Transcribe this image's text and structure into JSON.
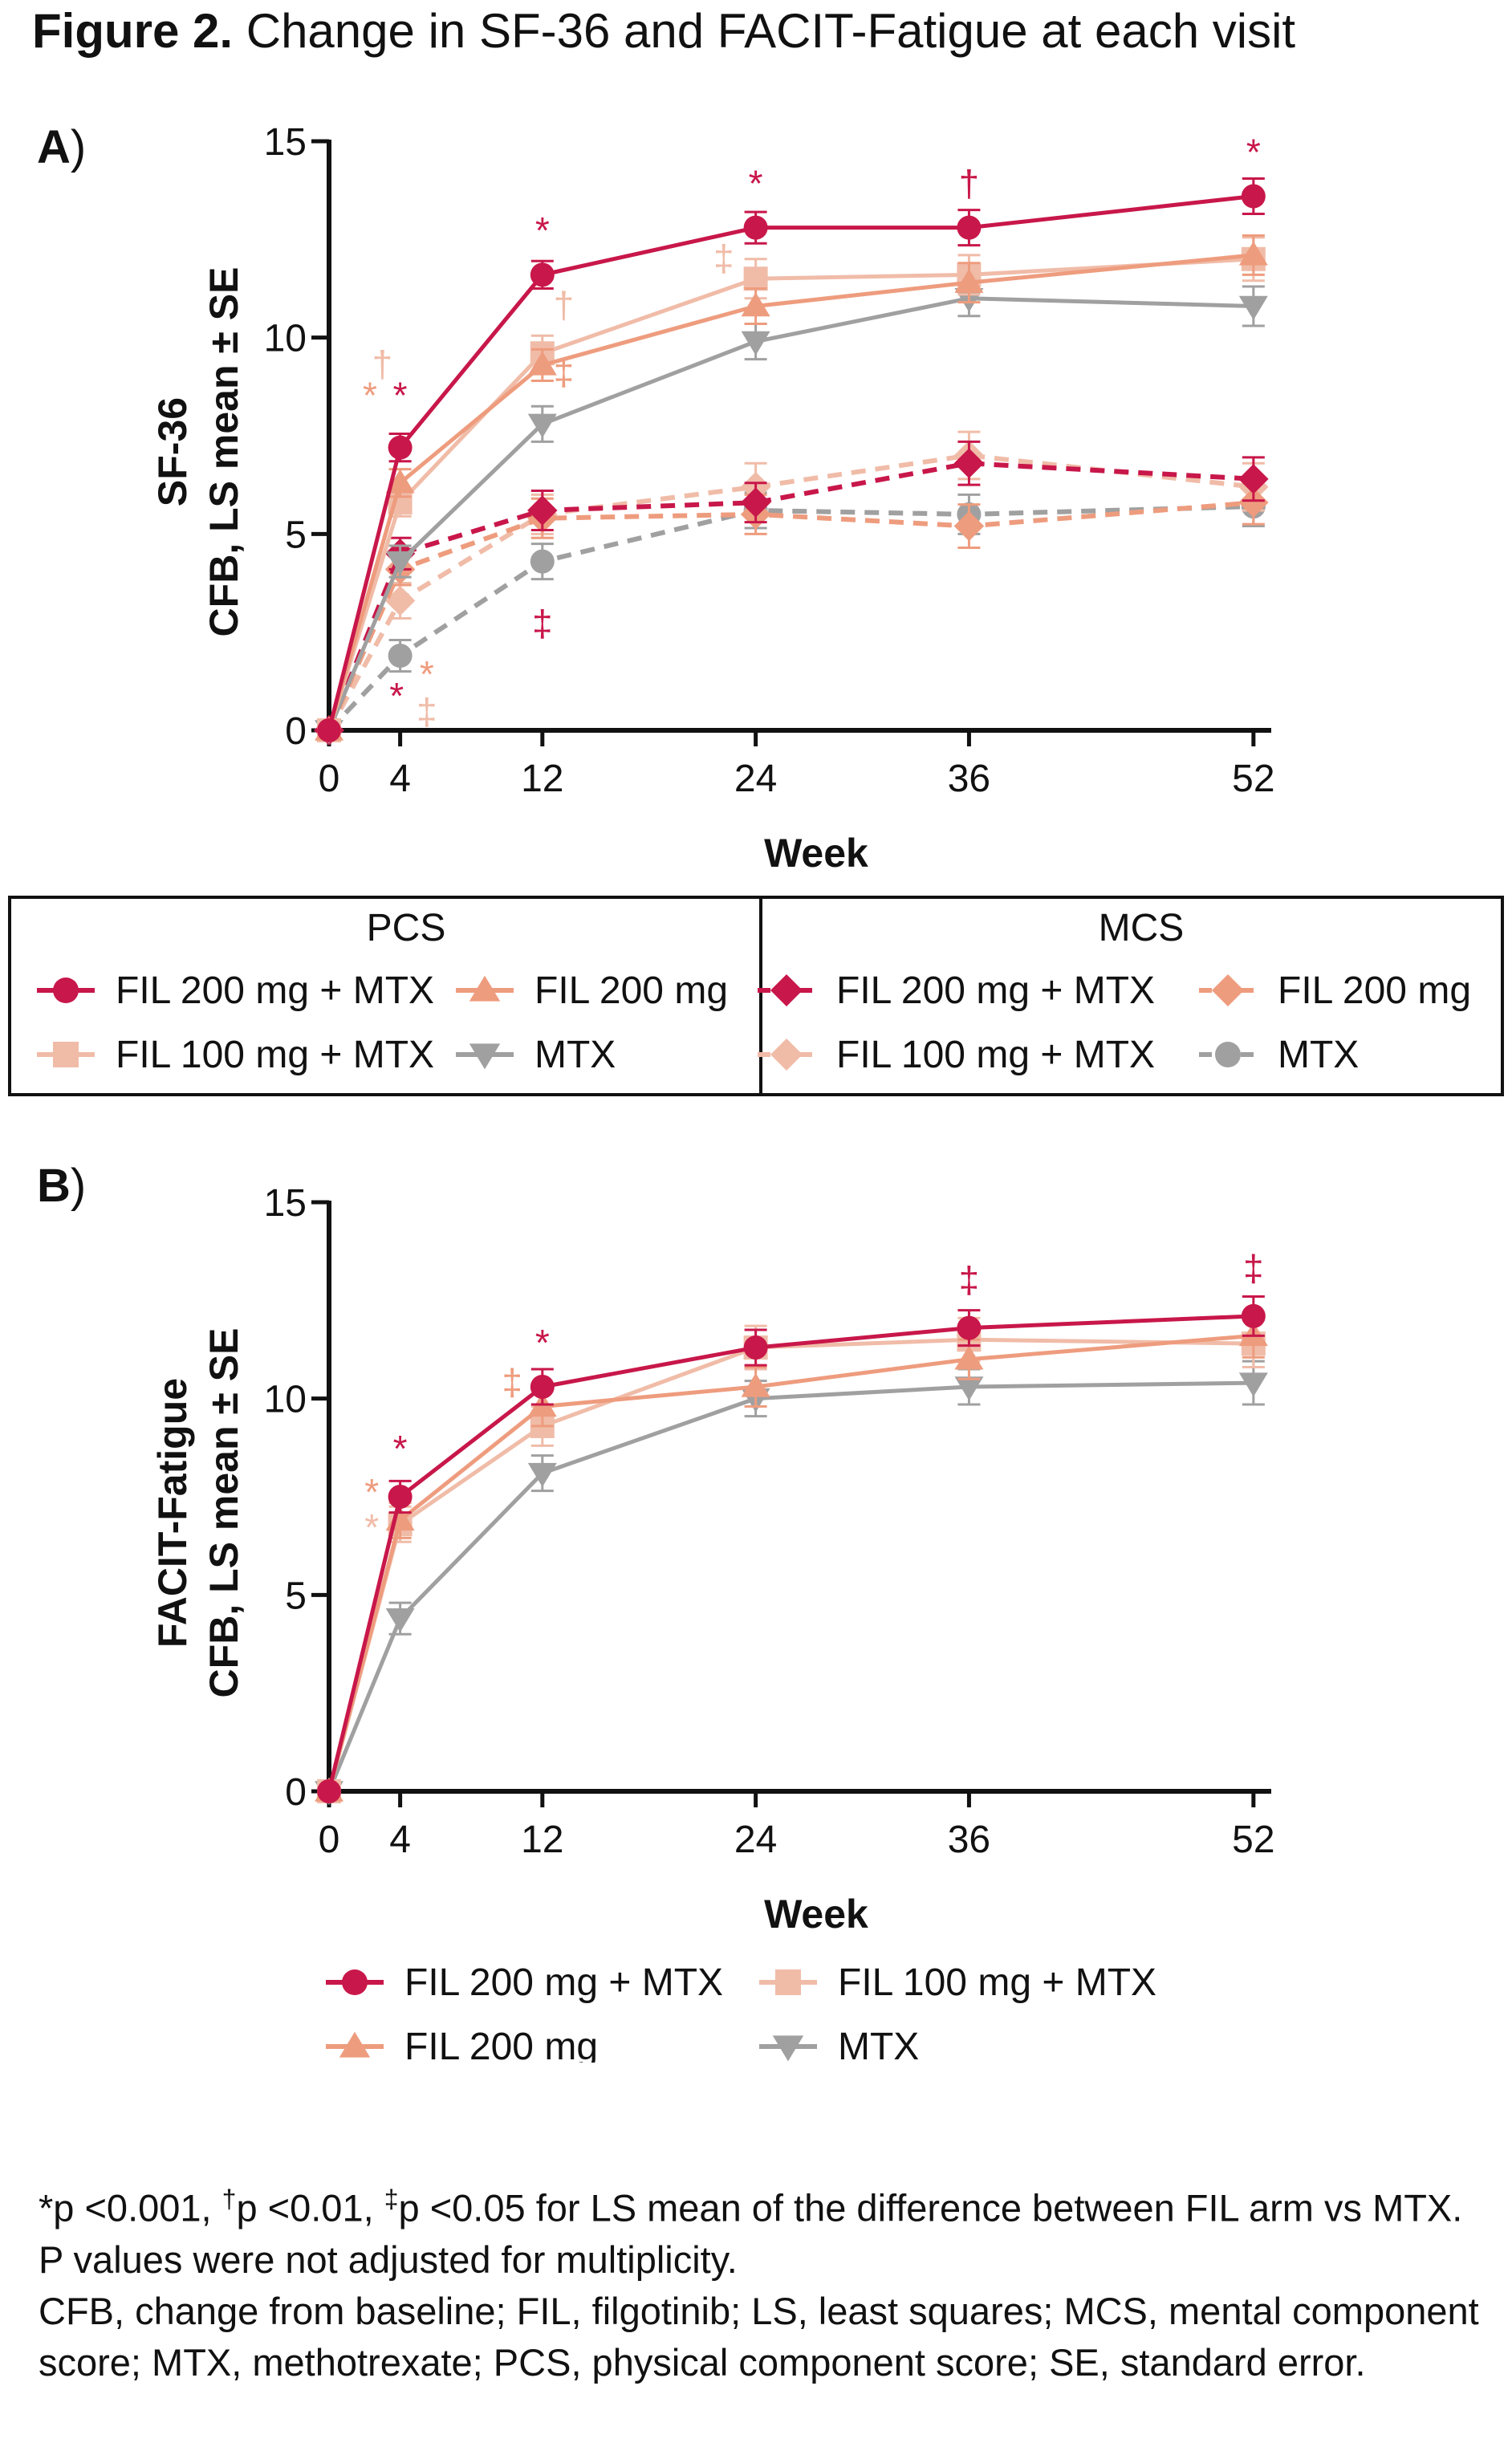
{
  "figure": {
    "title_bold": "Figure 2.",
    "title_rest": " Change in SF-36 and FACIT-Fatigue at each visit"
  },
  "colors": {
    "fil200_mtx": "#c8174a",
    "fil200": "#ee9c7e",
    "fil100_mtx": "#f0bca8",
    "mtx": "#a0a0a0",
    "axis": "#111111"
  },
  "panel_a": {
    "letter": "A",
    "paren": ")",
    "legend": {
      "pcs_header": "PCS",
      "mcs_header": "MCS",
      "pcs_items": [
        "FIL 200 mg + MTX",
        "FIL 200 mg",
        "FIL 100 mg + MTX",
        "MTX"
      ],
      "mcs_items": [
        "FIL 200 mg + MTX",
        "FIL 200 mg",
        "FIL 100 mg + MTX",
        "MTX"
      ]
    }
  },
  "panel_b": {
    "letter": "B",
    "paren": ")",
    "legend_items": [
      "FIL 200 mg + MTX",
      "FIL 100 mg + MTX",
      "FIL 200 mg",
      "MTX"
    ]
  },
  "chart_data": [
    {
      "type": "line",
      "panel": "A",
      "ylabel_line1": "SF-36",
      "ylabel_line2": "CFB, LS mean ± SE",
      "xlabel": "Week",
      "x": [
        0,
        4,
        12,
        24,
        36,
        52
      ],
      "xticks": [
        "0",
        "4",
        "12",
        "24",
        "36",
        "52"
      ],
      "yticks": [
        "0",
        "5",
        "10",
        "15"
      ],
      "ylim": [
        0,
        15
      ],
      "xlim": [
        0,
        53
      ],
      "series": [
        {
          "group": "PCS",
          "name": "FIL 200 mg + MTX",
          "color_key": "fil200_mtx",
          "marker": "circle",
          "dashed": false,
          "values": [
            0,
            7.2,
            11.6,
            12.8,
            12.8,
            13.6
          ],
          "se": [
            0,
            0.35,
            0.35,
            0.4,
            0.45,
            0.45
          ]
        },
        {
          "group": "PCS",
          "name": "FIL 200 mg",
          "color_key": "fil200",
          "marker": "triangle-up",
          "dashed": false,
          "values": [
            0,
            6.3,
            9.3,
            10.8,
            11.4,
            12.1
          ],
          "se": [
            0,
            0.35,
            0.4,
            0.45,
            0.5,
            0.5
          ]
        },
        {
          "group": "PCS",
          "name": "FIL 100 mg + MTX",
          "color_key": "fil100_mtx",
          "marker": "square",
          "dashed": false,
          "values": [
            0,
            5.8,
            9.6,
            11.5,
            11.6,
            12.0
          ],
          "se": [
            0,
            0.35,
            0.45,
            0.5,
            0.5,
            0.55
          ]
        },
        {
          "group": "PCS",
          "name": "MTX",
          "color_key": "mtx",
          "marker": "triangle-down",
          "dashed": false,
          "values": [
            0,
            4.3,
            7.8,
            9.9,
            11.0,
            10.8
          ],
          "se": [
            0,
            0.4,
            0.45,
            0.45,
            0.45,
            0.5
          ]
        },
        {
          "group": "MCS",
          "name": "FIL 200 mg + MTX",
          "color_key": "fil200_mtx",
          "marker": "diamond",
          "dashed": true,
          "values": [
            0,
            4.5,
            5.6,
            5.8,
            6.8,
            6.4
          ],
          "se": [
            0,
            0.4,
            0.5,
            0.5,
            0.55,
            0.55
          ]
        },
        {
          "group": "MCS",
          "name": "FIL 200 mg",
          "color_key": "fil200",
          "marker": "diamond",
          "dashed": true,
          "values": [
            0,
            4.1,
            5.4,
            5.5,
            5.2,
            5.8
          ],
          "se": [
            0,
            0.4,
            0.5,
            0.5,
            0.55,
            0.55
          ]
        },
        {
          "group": "MCS",
          "name": "FIL 100 mg + MTX",
          "color_key": "fil100_mtx",
          "marker": "diamond",
          "dashed": true,
          "values": [
            0,
            3.3,
            5.5,
            6.2,
            7.0,
            6.2
          ],
          "se": [
            0,
            0.45,
            0.5,
            0.6,
            0.6,
            0.6
          ]
        },
        {
          "group": "MCS",
          "name": "MTX",
          "color_key": "mtx",
          "marker": "circle",
          "dashed": true,
          "values": [
            0,
            1.9,
            4.3,
            5.6,
            5.5,
            5.7
          ],
          "se": [
            0,
            0.4,
            0.45,
            0.45,
            0.5,
            0.5
          ]
        }
      ],
      "annotations": [
        {
          "x": 4,
          "y": 8.2,
          "text": "*",
          "color_key": "fil200_mtx"
        },
        {
          "x": 2.3,
          "y": 8.2,
          "text": "*",
          "color_key": "fil200"
        },
        {
          "x": 3.0,
          "y": 9.0,
          "text": "†",
          "color_key": "fil100_mtx"
        },
        {
          "x": 12,
          "y": 12.4,
          "text": "*",
          "color_key": "fil200_mtx"
        },
        {
          "x": 13.2,
          "y": 10.5,
          "text": "†",
          "color_key": "fil100_mtx"
        },
        {
          "x": 13.2,
          "y": 8.8,
          "text": "‡",
          "color_key": "fil200"
        },
        {
          "x": 24,
          "y": 13.6,
          "text": "*",
          "color_key": "fil200_mtx"
        },
        {
          "x": 22.2,
          "y": 11.7,
          "text": "‡",
          "color_key": "fil100_mtx"
        },
        {
          "x": 36,
          "y": 13.6,
          "text": "†",
          "color_key": "fil200_mtx"
        },
        {
          "x": 52,
          "y": 14.4,
          "text": "*",
          "color_key": "fil200_mtx"
        },
        {
          "x": 12,
          "y": 2.4,
          "text": "‡",
          "color_key": "fil200_mtx"
        },
        {
          "x": 3.8,
          "y": 0.55,
          "text": "*",
          "color_key": "fil200_mtx"
        },
        {
          "x": 5.5,
          "y": 1.1,
          "text": "*",
          "color_key": "fil200"
        },
        {
          "x": 5.5,
          "y": 0.15,
          "text": "‡",
          "color_key": "fil100_mtx"
        }
      ]
    },
    {
      "type": "line",
      "panel": "B",
      "ylabel_line1": "FACIT-Fatigue",
      "ylabel_line2": "CFB, LS mean ± SE",
      "xlabel": "Week",
      "x": [
        0,
        4,
        12,
        24,
        36,
        52
      ],
      "xticks": [
        "0",
        "4",
        "12",
        "24",
        "36",
        "52"
      ],
      "yticks": [
        "0",
        "5",
        "10",
        "15"
      ],
      "ylim": [
        0,
        15
      ],
      "xlim": [
        0,
        53
      ],
      "series": [
        {
          "name": "FIL 200 mg + MTX",
          "color_key": "fil200_mtx",
          "marker": "circle",
          "dashed": false,
          "values": [
            0,
            7.5,
            10.3,
            11.3,
            11.8,
            12.1
          ],
          "se": [
            0,
            0.4,
            0.45,
            0.45,
            0.45,
            0.5
          ]
        },
        {
          "name": "FIL 200 mg",
          "color_key": "fil200",
          "marker": "triangle-up",
          "dashed": false,
          "values": [
            0,
            6.9,
            9.8,
            10.3,
            11.0,
            11.6
          ],
          "se": [
            0,
            0.45,
            0.5,
            0.5,
            0.5,
            0.55
          ]
        },
        {
          "name": "FIL 100 mg + MTX",
          "color_key": "fil100_mtx",
          "marker": "square",
          "dashed": false,
          "values": [
            0,
            6.8,
            9.3,
            11.3,
            11.5,
            11.4
          ],
          "se": [
            0,
            0.45,
            0.5,
            0.55,
            0.55,
            0.6
          ]
        },
        {
          "name": "MTX",
          "color_key": "mtx",
          "marker": "triangle-down",
          "dashed": false,
          "values": [
            0,
            4.4,
            8.1,
            10.0,
            10.3,
            10.4
          ],
          "se": [
            0,
            0.4,
            0.45,
            0.45,
            0.45,
            0.55
          ]
        }
      ],
      "annotations": [
        {
          "x": 4,
          "y": 8.4,
          "text": "*",
          "color_key": "fil200_mtx"
        },
        {
          "x": 2.4,
          "y": 7.3,
          "text": "*",
          "color_key": "fil200"
        },
        {
          "x": 2.4,
          "y": 6.4,
          "text": "*",
          "color_key": "fil100_mtx"
        },
        {
          "x": 12,
          "y": 11.1,
          "text": "*",
          "color_key": "fil200_mtx"
        },
        {
          "x": 10.3,
          "y": 10.1,
          "text": "‡",
          "color_key": "fil200"
        },
        {
          "x": 36,
          "y": 12.7,
          "text": "‡",
          "color_key": "fil200_mtx"
        },
        {
          "x": 52,
          "y": 13.0,
          "text": "‡",
          "color_key": "fil200_mtx"
        }
      ]
    }
  ],
  "footnote": {
    "sig_parts": [
      {
        "sup": "",
        "text": "*p <0.001, "
      },
      {
        "sup": "†",
        "text": "p <0.01, "
      },
      {
        "sup": "‡",
        "text": "p <0.05 for LS mean of the difference between FIL arm vs MTX. P values were not adjusted for multiplicity."
      }
    ],
    "abbreviations": "CFB, change from baseline; FIL, filgotinib; LS, least squares; MCS, mental component score; MTX, methotrexate; PCS, physical component score; SE, standard error."
  }
}
